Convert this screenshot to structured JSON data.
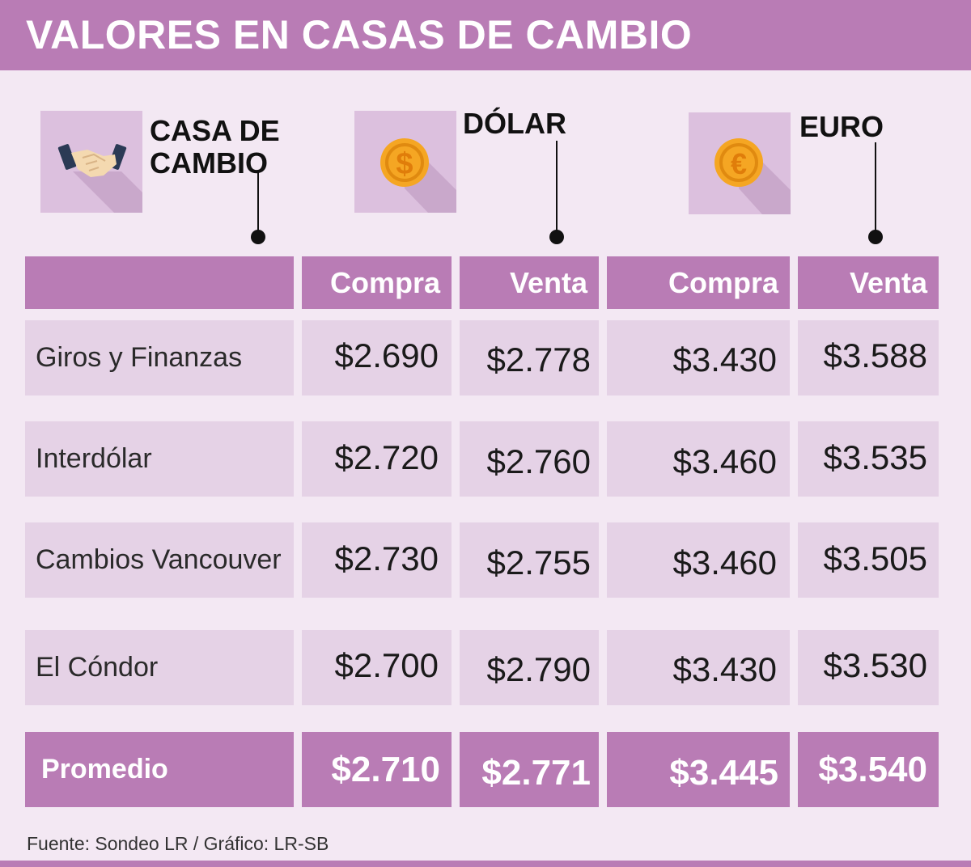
{
  "title": "VALORES EN CASAS DE CAMBIO",
  "sections": {
    "casa": {
      "label_line1": "CASA DE",
      "label_line2": "CAMBIO",
      "icon": "handshake-icon"
    },
    "dolar": {
      "label": "DÓLAR",
      "icon": "dollar-coin-icon"
    },
    "euro": {
      "label": "EURO",
      "icon": "euro-coin-icon"
    }
  },
  "colors": {
    "accent": "#b97cb5",
    "row_bg": "#e5d2e6",
    "page_bg": "#f3e8f3",
    "coin": "#f5a623"
  },
  "chart_data": {
    "type": "table",
    "title": "VALORES EN CASAS DE CAMBIO",
    "groups": [
      "CASA DE CAMBIO",
      "DÓLAR",
      "EURO"
    ],
    "columns": [
      "",
      "Compra",
      "Venta",
      "Compra",
      "Venta"
    ],
    "rows": [
      {
        "name": "Giros y Finanzas",
        "dolar_compra": "$2.690",
        "dolar_venta": "$2.778",
        "euro_compra": "$3.430",
        "euro_venta": "$3.588"
      },
      {
        "name": "Interdólar",
        "dolar_compra": "$2.720",
        "dolar_venta": "$2.760",
        "euro_compra": "$3.460",
        "euro_venta": "$3.535"
      },
      {
        "name": "Cambios Vancouver",
        "dolar_compra": "$2.730",
        "dolar_venta": "$2.755",
        "euro_compra": "$3.460",
        "euro_venta": "$3.505"
      },
      {
        "name": "El Cóndor",
        "dolar_compra": "$2.700",
        "dolar_venta": "$2.790",
        "euro_compra": "$3.430",
        "euro_venta": "$3.530"
      }
    ],
    "average": {
      "name": "Promedio",
      "dolar_compra": "$2.710",
      "dolar_venta": "$2.771",
      "euro_compra": "$3.445",
      "euro_venta": "$3.540"
    }
  },
  "footer": {
    "source": "Fuente: Sondeo LR / Gráfico: LR-SB"
  }
}
